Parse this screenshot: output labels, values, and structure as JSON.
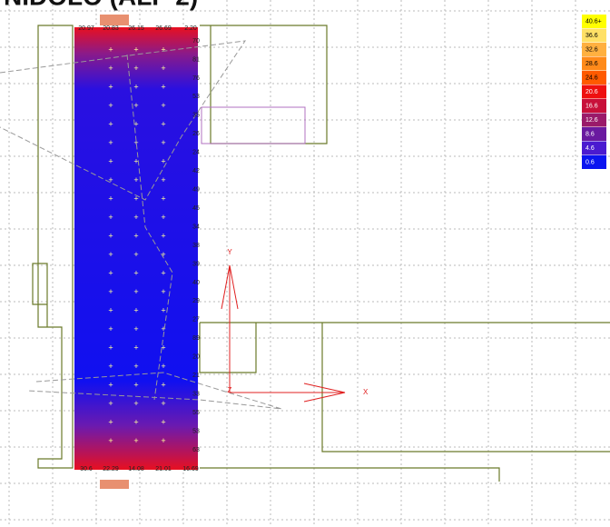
{
  "header": {
    "title": "NIDOLO (ALP 2)"
  },
  "legend": {
    "items": [
      {
        "label": "40.6+",
        "color": "#ffff00"
      },
      {
        "label": "36.6",
        "color": "#ffe066"
      },
      {
        "label": "32.6",
        "color": "#ffb040"
      },
      {
        "label": "28.6",
        "color": "#ff8a1a"
      },
      {
        "label": "24.6",
        "color": "#ff5a00"
      },
      {
        "label": "20.6",
        "color": "#ee1010"
      },
      {
        "label": "16.6",
        "color": "#c8103a"
      },
      {
        "label": "12.6",
        "color": "#9a1a6a"
      },
      {
        "label": "8.6",
        "color": "#6a1aa0"
      },
      {
        "label": "4.6",
        "color": "#4a1ad0"
      },
      {
        "label": "0.6",
        "color": "#0a14f0"
      }
    ]
  },
  "grid_values": {
    "top_row": [
      "20.97",
      "20.83",
      "26.15",
      "26.69",
      "2.20"
    ],
    "bottom_row": [
      "30.6",
      "22.29",
      "14.08",
      "21.01",
      "16.69"
    ],
    "right_column": [
      "70",
      "81",
      "76",
      "53",
      "35",
      "26",
      "24",
      "42",
      "49",
      "45",
      "34",
      "38",
      "39",
      "40",
      "29",
      "27",
      "89",
      "20",
      "21",
      "33",
      "55",
      "53",
      "63"
    ]
  },
  "axes": {
    "x": "X",
    "y": "Y",
    "z": "Z"
  }
}
